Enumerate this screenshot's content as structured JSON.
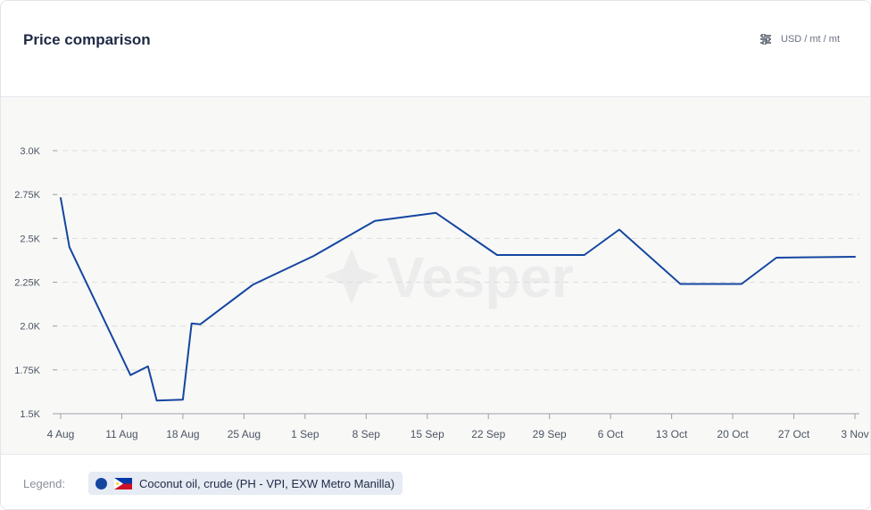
{
  "header": {
    "title": "Price comparison",
    "units_label": "USD / mt / mt",
    "units_icon": "sliders-icon"
  },
  "legend": {
    "label": "Legend:",
    "items": [
      {
        "name": "Coconut oil, crude (PH - VPI, EXW Metro Manilla)",
        "color": "#1446a0",
        "flag": "philippines-flag-icon"
      }
    ]
  },
  "watermark": "Vesper",
  "chart_data": {
    "type": "line",
    "title": "Price comparison",
    "xlabel": "",
    "ylabel": "",
    "ylim": [
      1500,
      3000
    ],
    "x_ticks": [
      "4 Aug",
      "11 Aug",
      "18 Aug",
      "25 Aug",
      "1 Sep",
      "8 Sep",
      "15 Sep",
      "22 Sep",
      "29 Sep",
      "6 Oct",
      "13 Oct",
      "20 Oct",
      "27 Oct",
      "3 Nov"
    ],
    "y_ticks": [
      "1.5K",
      "1.75K",
      "2.0K",
      "2.25K",
      "2.5K",
      "2.75K",
      "3.0K"
    ],
    "y_tick_values": [
      1500,
      1750,
      2000,
      2250,
      2500,
      2750,
      3000
    ],
    "grid": "horizontal dashed",
    "series": [
      {
        "name": "Coconut oil, crude (PH - VPI, EXW Metro Manilla)",
        "color": "#1446a0",
        "points": [
          [
            "4 Aug",
            2730
          ],
          [
            "5 Aug",
            2450
          ],
          [
            "12 Aug",
            1720
          ],
          [
            "14 Aug",
            1770
          ],
          [
            "15 Aug",
            1575
          ],
          [
            "18 Aug",
            1580
          ],
          [
            "19 Aug",
            2015
          ],
          [
            "20 Aug",
            2010
          ],
          [
            "26 Aug",
            2235
          ],
          [
            "2 Sep",
            2400
          ],
          [
            "9 Sep",
            2600
          ],
          [
            "16 Sep",
            2645
          ],
          [
            "23 Sep",
            2405
          ],
          [
            "3 Oct",
            2405
          ],
          [
            "7 Oct",
            2550
          ],
          [
            "14 Oct",
            2240
          ],
          [
            "21 Oct",
            2240
          ],
          [
            "25 Oct",
            2390
          ],
          [
            "3 Nov",
            2395
          ]
        ]
      }
    ]
  }
}
